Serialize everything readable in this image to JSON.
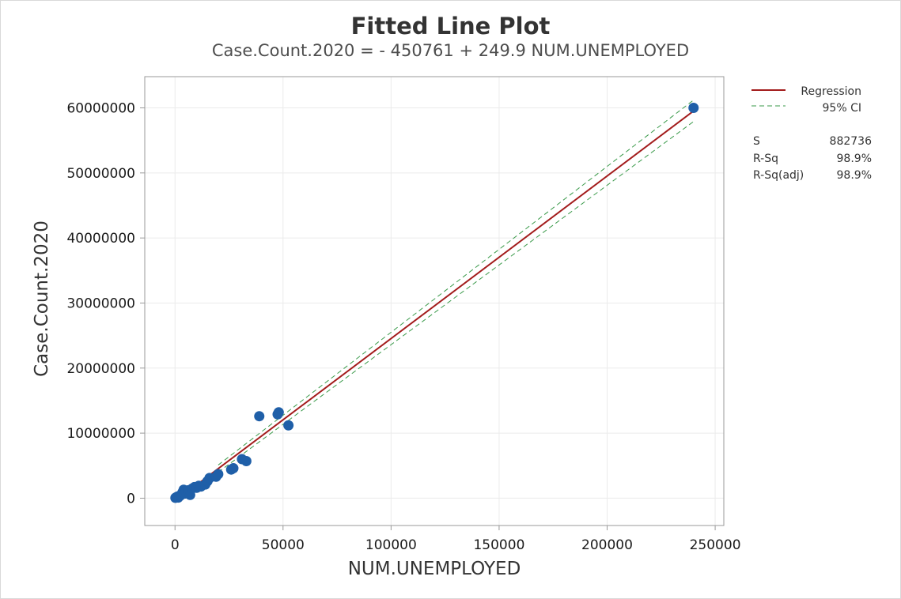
{
  "chart_data": {
    "type": "scatter",
    "title": "Fitted Line Plot",
    "subtitle": "Case.Count.2020 = - 450761 + 249.9 NUM.UNEMPLOYED",
    "xlabel": "NUM.UNEMPLOYED",
    "ylabel": "Case.Count.2020",
    "xlim": [
      -14000,
      254000
    ],
    "ylim": [
      -4200000,
      64800000
    ],
    "xticks": [
      0,
      50000,
      100000,
      150000,
      200000,
      250000
    ],
    "yticks": [
      0,
      10000000,
      20000000,
      30000000,
      40000000,
      50000000,
      60000000
    ],
    "grid": true,
    "legend_placement": "right",
    "colors": {
      "points": "#1f5fa8",
      "regression": "#a31c1c",
      "ci": "#3a9a4a"
    },
    "regression": {
      "intercept": -450761,
      "slope": 249.9,
      "x_range": [
        0,
        240000
      ]
    },
    "ci_band": {
      "x": [
        20000,
        240000
      ],
      "upper": [
        5100000,
        61200000
      ],
      "lower": [
        4000000,
        57900000
      ]
    },
    "points": [
      {
        "x": 200,
        "y": 50000
      },
      {
        "x": 500,
        "y": 120000
      },
      {
        "x": 800,
        "y": 180000
      },
      {
        "x": 1200,
        "y": 250000
      },
      {
        "x": 1500,
        "y": 100000
      },
      {
        "x": 2000,
        "y": 350000
      },
      {
        "x": 2500,
        "y": 420000
      },
      {
        "x": 3000,
        "y": 600000
      },
      {
        "x": 3500,
        "y": 900000
      },
      {
        "x": 4000,
        "y": 1300000
      },
      {
        "x": 4500,
        "y": 700000
      },
      {
        "x": 5000,
        "y": 1100000
      },
      {
        "x": 6000,
        "y": 1200000
      },
      {
        "x": 7000,
        "y": 500000
      },
      {
        "x": 8000,
        "y": 1500000
      },
      {
        "x": 9000,
        "y": 1700000
      },
      {
        "x": 10000,
        "y": 1600000
      },
      {
        "x": 11000,
        "y": 1900000
      },
      {
        "x": 12000,
        "y": 1800000
      },
      {
        "x": 14000,
        "y": 2100000
      },
      {
        "x": 15000,
        "y": 2600000
      },
      {
        "x": 16000,
        "y": 3100000
      },
      {
        "x": 19000,
        "y": 3300000
      },
      {
        "x": 20000,
        "y": 3700000
      },
      {
        "x": 26000,
        "y": 4400000
      },
      {
        "x": 27000,
        "y": 4600000
      },
      {
        "x": 31000,
        "y": 6000000
      },
      {
        "x": 33000,
        "y": 5700000
      },
      {
        "x": 39000,
        "y": 12600000
      },
      {
        "x": 47500,
        "y": 12900000
      },
      {
        "x": 48000,
        "y": 13200000
      },
      {
        "x": 52500,
        "y": 11200000
      },
      {
        "x": 240000,
        "y": 60000000
      }
    ],
    "legend": {
      "regression_label": "Regression",
      "ci_label": "95% CI"
    },
    "stats": [
      {
        "label": "S",
        "value": "882736"
      },
      {
        "label": "R-Sq",
        "value": "98.9%"
      },
      {
        "label": "R-Sq(adj)",
        "value": "98.9%"
      }
    ]
  }
}
